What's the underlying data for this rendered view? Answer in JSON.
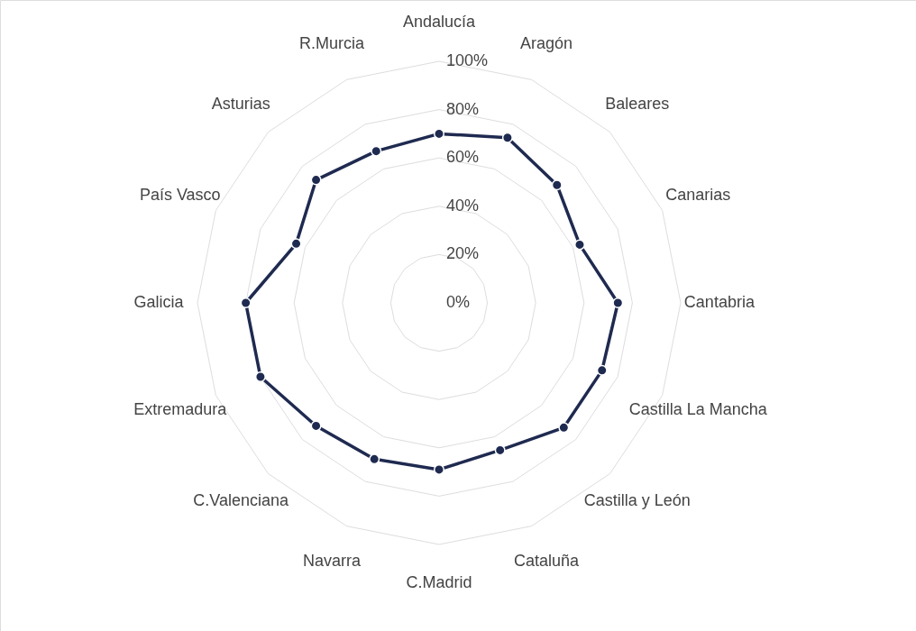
{
  "chart_data": {
    "type": "radar",
    "categories": [
      "Andalucía",
      "Aragón",
      "Baleares",
      "Canarias",
      "Cantabria",
      "Castilla La Mancha",
      "Castilla y León",
      "Cataluña",
      "C.Madrid",
      "Navarra",
      "C.Valenciana",
      "Extremadura",
      "Galicia",
      "País Vasco",
      "Asturias",
      "R.Murcia"
    ],
    "series": [
      {
        "color": "#1f2a50",
        "values": [
          70,
          74,
          69,
          63,
          74,
          73,
          73,
          66,
          69,
          70,
          72,
          80,
          80,
          64,
          72,
          68
        ]
      }
    ],
    "ylim": [
      0,
      100
    ],
    "yticks": [
      {
        "value": 0,
        "label": "0%"
      },
      {
        "value": 20,
        "label": "20%"
      },
      {
        "value": 40,
        "label": "40%"
      },
      {
        "value": 60,
        "label": "60%"
      },
      {
        "value": 80,
        "label": "80%"
      },
      {
        "value": 100,
        "label": "100%"
      }
    ],
    "marker": "circle",
    "line_style": "solid"
  }
}
